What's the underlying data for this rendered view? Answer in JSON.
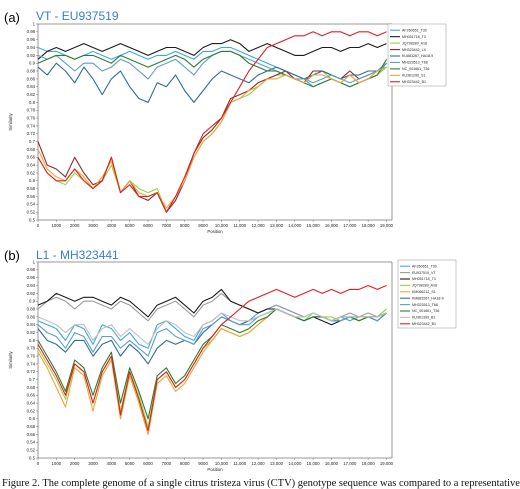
{
  "caption": "Figure 2. The complete genome of a single citrus tristeza virus (CTV) genotype sequence was compared to a representative",
  "chart_data": [
    {
      "type": "line",
      "panel": "(a)",
      "title": "VT - EU937519",
      "xlabel": "Position",
      "ylabel": "Similarity",
      "xlim": [
        0,
        19300
      ],
      "ylim": [
        0.5,
        1.0
      ],
      "xticks": [
        "0",
        "1000",
        "2000",
        "3000",
        "4000",
        "5000",
        "6000",
        "7000",
        "8000",
        "9000",
        "10,000",
        "11,000",
        "12,000",
        "13,000",
        "14,000",
        "15,000",
        "16,000",
        "17,000",
        "18,000",
        "19,000"
      ],
      "yticks": [
        "0.5",
        "0.52",
        "0.54",
        "0.56",
        "0.58",
        "0.6",
        "0.62",
        "0.64",
        "0.66",
        "0.68",
        "0.7",
        "0.72",
        "0.74",
        "0.76",
        "0.78",
        "0.8",
        "0.82",
        "0.84",
        "0.86",
        "0.88",
        "0.9",
        "0.92",
        "0.94",
        "0.96",
        "0.98",
        "1"
      ],
      "legend": "top-right",
      "x": [
        0,
        500,
        1000,
        1500,
        2000,
        2500,
        3000,
        3500,
        4000,
        4500,
        5000,
        5500,
        6000,
        6500,
        7000,
        7500,
        8000,
        8500,
        9000,
        9500,
        10000,
        10500,
        11000,
        11500,
        12000,
        12500,
        13000,
        13500,
        14000,
        14500,
        15000,
        15500,
        16000,
        16500,
        17000,
        17500,
        18000,
        18500,
        19000
      ],
      "series": [
        {
          "name": "AF260651_T30",
          "color": "#3fa7e0",
          "values": [
            0.94,
            0.93,
            0.93,
            0.92,
            0.91,
            0.92,
            0.93,
            0.92,
            0.91,
            0.92,
            0.93,
            0.92,
            0.91,
            0.92,
            0.92,
            0.93,
            0.92,
            0.91,
            0.93,
            0.93,
            0.94,
            0.94,
            0.93,
            0.92,
            0.91,
            0.9,
            0.89,
            0.88,
            0.87,
            0.86,
            0.84,
            0.85,
            0.86,
            0.85,
            0.84,
            0.85,
            0.86,
            0.87,
            0.9
          ]
        },
        {
          "name": "MH051718_T3",
          "color": "#1c1c1c",
          "values": [
            0.91,
            0.93,
            0.94,
            0.93,
            0.94,
            0.95,
            0.94,
            0.93,
            0.94,
            0.95,
            0.94,
            0.93,
            0.92,
            0.93,
            0.94,
            0.94,
            0.93,
            0.92,
            0.94,
            0.95,
            0.95,
            0.96,
            0.95,
            0.93,
            0.94,
            0.95,
            0.94,
            0.93,
            0.92,
            0.92,
            0.93,
            0.94,
            0.94,
            0.93,
            0.94,
            0.94,
            0.95,
            0.94,
            0.95
          ]
        },
        {
          "name": "JQ798289_A18",
          "color": "#8fd64a",
          "values": [
            0.66,
            0.62,
            0.6,
            0.59,
            0.62,
            0.6,
            0.58,
            0.6,
            0.64,
            0.57,
            0.6,
            0.58,
            0.57,
            0.58,
            0.52,
            0.56,
            0.6,
            0.66,
            0.7,
            0.72,
            0.75,
            0.8,
            0.81,
            0.82,
            0.84,
            0.86,
            0.87,
            0.87,
            0.86,
            0.85,
            0.87,
            0.88,
            0.86,
            0.85,
            0.87,
            0.85,
            0.86,
            0.87,
            0.89
          ]
        },
        {
          "name": "MH323442_LX",
          "color": "#8c2a2a",
          "values": [
            0.7,
            0.64,
            0.63,
            0.61,
            0.66,
            0.62,
            0.59,
            0.6,
            0.66,
            0.57,
            0.6,
            0.56,
            0.55,
            0.57,
            0.52,
            0.55,
            0.6,
            0.67,
            0.71,
            0.73,
            0.76,
            0.81,
            0.82,
            0.83,
            0.85,
            0.86,
            0.87,
            0.88,
            0.86,
            0.85,
            0.88,
            0.88,
            0.87,
            0.86,
            0.88,
            0.86,
            0.87,
            0.88,
            0.9
          ]
        },
        {
          "name": "KU883267_HA18-9",
          "color": "#2f6b9a",
          "values": [
            0.89,
            0.87,
            0.9,
            0.88,
            0.85,
            0.89,
            0.86,
            0.82,
            0.86,
            0.88,
            0.84,
            0.81,
            0.8,
            0.85,
            0.84,
            0.87,
            0.83,
            0.8,
            0.83,
            0.86,
            0.88,
            0.87,
            0.86,
            0.85,
            0.87,
            0.88,
            0.89,
            0.88,
            0.87,
            0.86,
            0.87,
            0.88,
            0.87,
            0.86,
            0.87,
            0.87,
            0.88,
            0.88,
            0.89
          ]
        },
        {
          "name": "MH323513_T68",
          "color": "#5aa0c8",
          "values": [
            0.92,
            0.91,
            0.92,
            0.9,
            0.88,
            0.9,
            0.9,
            0.88,
            0.89,
            0.91,
            0.9,
            0.88,
            0.86,
            0.89,
            0.9,
            0.91,
            0.89,
            0.87,
            0.9,
            0.92,
            0.93,
            0.93,
            0.92,
            0.91,
            0.9,
            0.89,
            0.88,
            0.87,
            0.86,
            0.86,
            0.85,
            0.86,
            0.87,
            0.86,
            0.85,
            0.86,
            0.87,
            0.88,
            0.9
          ]
        },
        {
          "name": "NC_001661_T36",
          "color": "#2e7d32",
          "values": [
            0.9,
            0.91,
            0.92,
            0.92,
            0.91,
            0.92,
            0.92,
            0.91,
            0.9,
            0.92,
            0.91,
            0.9,
            0.89,
            0.9,
            0.91,
            0.92,
            0.91,
            0.89,
            0.91,
            0.92,
            0.93,
            0.93,
            0.92,
            0.9,
            0.89,
            0.88,
            0.88,
            0.87,
            0.86,
            0.85,
            0.84,
            0.85,
            0.86,
            0.85,
            0.84,
            0.85,
            0.86,
            0.87,
            0.91
          ]
        },
        {
          "name": "KU361299_S1",
          "color": "#f2a23a",
          "values": [
            0.68,
            0.63,
            0.61,
            0.6,
            0.63,
            0.61,
            0.58,
            0.61,
            0.65,
            0.57,
            0.6,
            0.57,
            0.56,
            0.57,
            0.53,
            0.56,
            0.6,
            0.66,
            0.7,
            0.72,
            0.75,
            0.8,
            0.81,
            0.83,
            0.84,
            0.86,
            0.86,
            0.87,
            0.86,
            0.85,
            0.87,
            0.87,
            0.86,
            0.85,
            0.87,
            0.85,
            0.86,
            0.88,
            0.89
          ]
        },
        {
          "name": "MH323442_B1",
          "color": "#e02020",
          "values": [
            0.66,
            0.62,
            0.6,
            0.6,
            0.63,
            0.6,
            0.58,
            0.6,
            0.66,
            0.57,
            0.59,
            0.56,
            0.56,
            0.57,
            0.52,
            0.56,
            0.61,
            0.67,
            0.72,
            0.74,
            0.76,
            0.8,
            0.84,
            0.88,
            0.91,
            0.94,
            0.95,
            0.96,
            0.97,
            0.97,
            0.98,
            0.97,
            0.98,
            0.98,
            0.97,
            0.98,
            0.98,
            0.97,
            0.98
          ]
        }
      ]
    },
    {
      "type": "line",
      "panel": "(b)",
      "title": "L1 - MH323441",
      "xlabel": "Position",
      "ylabel": "Similarity",
      "xlim": [
        0,
        19300
      ],
      "ylim": [
        0.5,
        1.0
      ],
      "xticks": [
        "0",
        "1000",
        "2000",
        "3000",
        "4000",
        "5000",
        "6000",
        "7000",
        "8000",
        "9000",
        "10,000",
        "11,000",
        "12,000",
        "13,000",
        "14,000",
        "15,000",
        "16,000",
        "17,000",
        "18,000",
        "19,000"
      ],
      "yticks": [
        "0.5",
        "0.52",
        "0.54",
        "0.56",
        "0.58",
        "0.6",
        "0.62",
        "0.64",
        "0.66",
        "0.68",
        "0.7",
        "0.72",
        "0.74",
        "0.76",
        "0.78",
        "0.8",
        "0.82",
        "0.84",
        "0.86",
        "0.88",
        "0.9",
        "0.92",
        "0.94",
        "0.96",
        "0.98",
        "1"
      ],
      "legend": "top-right",
      "x": [
        0,
        500,
        1000,
        1500,
        2000,
        2500,
        3000,
        3500,
        4000,
        4500,
        5000,
        5500,
        6000,
        6500,
        7000,
        7500,
        8000,
        8500,
        9000,
        9500,
        10000,
        10500,
        11000,
        11500,
        12000,
        12500,
        13000,
        13500,
        14000,
        14500,
        15000,
        15500,
        16000,
        16500,
        17000,
        17500,
        18000,
        18500,
        19000
      ],
      "series": [
        {
          "name": "AF260651_T30",
          "color": "#3fa7e0",
          "values": [
            0.85,
            0.84,
            0.83,
            0.8,
            0.84,
            0.83,
            0.79,
            0.84,
            0.83,
            0.8,
            0.82,
            0.79,
            0.78,
            0.84,
            0.85,
            0.83,
            0.81,
            0.8,
            0.84,
            0.85,
            0.87,
            0.85,
            0.84,
            0.85,
            0.87,
            0.88,
            0.89,
            0.88,
            0.87,
            0.86,
            0.87,
            0.86,
            0.85,
            0.86,
            0.85,
            0.86,
            0.86,
            0.85,
            0.87
          ]
        },
        {
          "name": "EU937519_VT",
          "color": "#9a9a9a",
          "values": [
            0.88,
            0.9,
            0.91,
            0.9,
            0.88,
            0.9,
            0.9,
            0.89,
            0.88,
            0.9,
            0.89,
            0.87,
            0.85,
            0.88,
            0.89,
            0.9,
            0.88,
            0.86,
            0.89,
            0.9,
            0.92,
            0.9,
            0.89,
            0.88,
            0.87,
            0.88,
            0.89,
            0.88,
            0.87,
            0.86,
            0.87,
            0.86,
            0.85,
            0.86,
            0.87,
            0.86,
            0.87,
            0.86,
            0.88
          ]
        },
        {
          "name": "MH051718_T3",
          "color": "#1c1c1c",
          "values": [
            0.89,
            0.9,
            0.92,
            0.91,
            0.9,
            0.91,
            0.91,
            0.9,
            0.89,
            0.91,
            0.9,
            0.88,
            0.86,
            0.89,
            0.9,
            0.91,
            0.89,
            0.87,
            0.9,
            0.91,
            0.93,
            0.9,
            0.89,
            0.88,
            0.87,
            0.88,
            0.88,
            0.87,
            0.86,
            0.85,
            0.86,
            0.85,
            0.84,
            0.85,
            0.86,
            0.85,
            0.86,
            0.85,
            0.87
          ]
        },
        {
          "name": "JQ798289_A18",
          "color": "#8fd64a",
          "values": [
            0.78,
            0.74,
            0.7,
            0.65,
            0.74,
            0.72,
            0.64,
            0.72,
            0.76,
            0.62,
            0.72,
            0.66,
            0.58,
            0.7,
            0.72,
            0.68,
            0.7,
            0.74,
            0.78,
            0.8,
            0.83,
            0.82,
            0.81,
            0.82,
            0.84,
            0.86,
            0.88,
            0.87,
            0.86,
            0.85,
            0.87,
            0.86,
            0.86,
            0.85,
            0.86,
            0.85,
            0.86,
            0.86,
            0.88
          ]
        },
        {
          "name": "KM066212_S1",
          "color": "#f2a23a",
          "values": [
            0.77,
            0.73,
            0.68,
            0.63,
            0.73,
            0.71,
            0.62,
            0.71,
            0.75,
            0.6,
            0.71,
            0.64,
            0.56,
            0.69,
            0.71,
            0.67,
            0.69,
            0.73,
            0.77,
            0.8,
            0.83,
            0.82,
            0.81,
            0.82,
            0.84,
            0.86,
            0.88,
            0.87,
            0.86,
            0.85,
            0.86,
            0.86,
            0.85,
            0.85,
            0.86,
            0.85,
            0.86,
            0.86,
            0.87
          ]
        },
        {
          "name": "KM883267_HA18-9",
          "color": "#2f6b9a",
          "values": [
            0.83,
            0.8,
            0.79,
            0.77,
            0.8,
            0.8,
            0.76,
            0.79,
            0.8,
            0.76,
            0.79,
            0.77,
            0.74,
            0.78,
            0.8,
            0.79,
            0.8,
            0.79,
            0.82,
            0.84,
            0.86,
            0.85,
            0.84,
            0.85,
            0.86,
            0.87,
            0.88,
            0.87,
            0.86,
            0.85,
            0.86,
            0.86,
            0.85,
            0.85,
            0.86,
            0.86,
            0.86,
            0.86,
            0.87
          ]
        },
        {
          "name": "MH323513_T68",
          "color": "#5aa0c8",
          "values": [
            0.84,
            0.82,
            0.81,
            0.78,
            0.82,
            0.81,
            0.77,
            0.81,
            0.81,
            0.78,
            0.8,
            0.78,
            0.76,
            0.82,
            0.83,
            0.81,
            0.8,
            0.79,
            0.83,
            0.84,
            0.86,
            0.85,
            0.84,
            0.84,
            0.86,
            0.87,
            0.88,
            0.87,
            0.86,
            0.85,
            0.86,
            0.86,
            0.85,
            0.85,
            0.86,
            0.86,
            0.86,
            0.85,
            0.87
          ]
        },
        {
          "name": "NC_001661_T36",
          "color": "#2e7d32",
          "values": [
            0.8,
            0.76,
            0.72,
            0.67,
            0.75,
            0.73,
            0.66,
            0.73,
            0.77,
            0.64,
            0.73,
            0.67,
            0.6,
            0.71,
            0.73,
            0.69,
            0.71,
            0.75,
            0.79,
            0.81,
            0.84,
            0.83,
            0.82,
            0.83,
            0.85,
            0.86,
            0.88,
            0.87,
            0.86,
            0.85,
            0.86,
            0.86,
            0.85,
            0.86,
            0.86,
            0.85,
            0.86,
            0.86,
            0.87
          ]
        },
        {
          "name": "KU361399_B1",
          "color": "#c0c0c0",
          "values": [
            0.86,
            0.85,
            0.84,
            0.82,
            0.84,
            0.84,
            0.8,
            0.83,
            0.84,
            0.81,
            0.83,
            0.81,
            0.79,
            0.83,
            0.85,
            0.84,
            0.82,
            0.81,
            0.84,
            0.85,
            0.87,
            0.86,
            0.85,
            0.85,
            0.86,
            0.87,
            0.88,
            0.87,
            0.86,
            0.86,
            0.87,
            0.86,
            0.85,
            0.86,
            0.86,
            0.86,
            0.86,
            0.86,
            0.87
          ]
        },
        {
          "name": "MH323442_B1",
          "color": "#e02020",
          "values": [
            0.79,
            0.75,
            0.71,
            0.66,
            0.74,
            0.72,
            0.64,
            0.72,
            0.76,
            0.61,
            0.72,
            0.65,
            0.57,
            0.7,
            0.72,
            0.68,
            0.7,
            0.74,
            0.78,
            0.81,
            0.84,
            0.86,
            0.88,
            0.9,
            0.91,
            0.92,
            0.93,
            0.92,
            0.91,
            0.92,
            0.93,
            0.92,
            0.93,
            0.92,
            0.93,
            0.93,
            0.94,
            0.93,
            0.94
          ]
        }
      ]
    }
  ]
}
